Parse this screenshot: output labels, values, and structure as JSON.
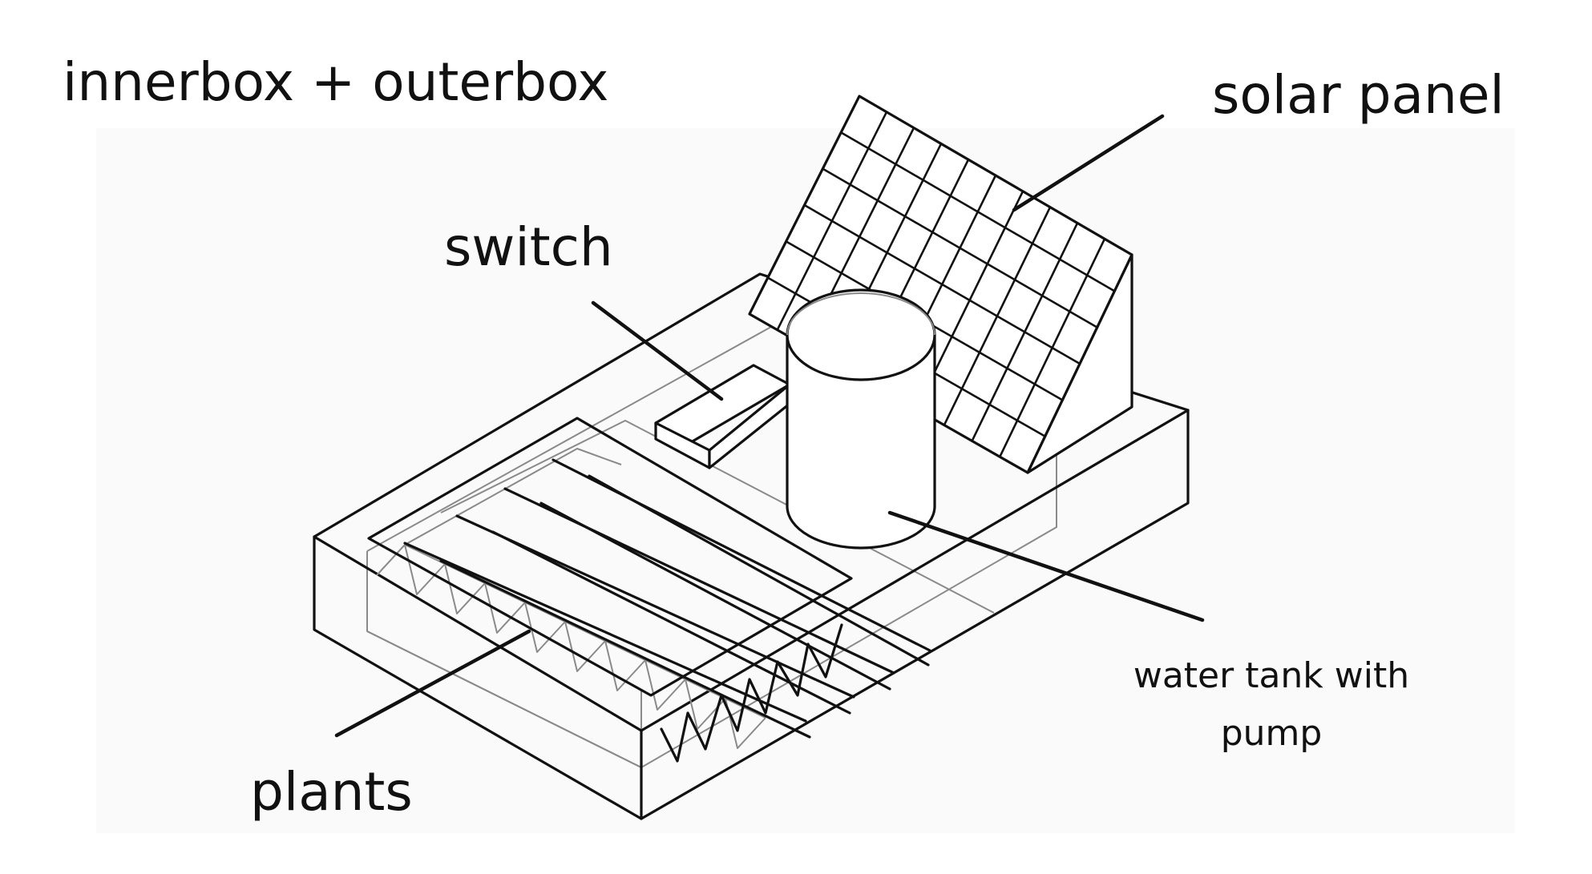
{
  "diagram": {
    "title": "innerbox + outerbox",
    "labels": {
      "solar_panel": "solar panel",
      "switch": "switch",
      "plants": "plants",
      "water_tank_line1": "water tank with",
      "water_tank_line2": "pump"
    },
    "colors": {
      "ink": "#111111",
      "hidden_edges": "#8a8a8a",
      "background": "#ffffff"
    },
    "components": [
      "outer-box",
      "inner-box",
      "solar-panel",
      "switch",
      "plant-trough",
      "water-tank"
    ]
  }
}
